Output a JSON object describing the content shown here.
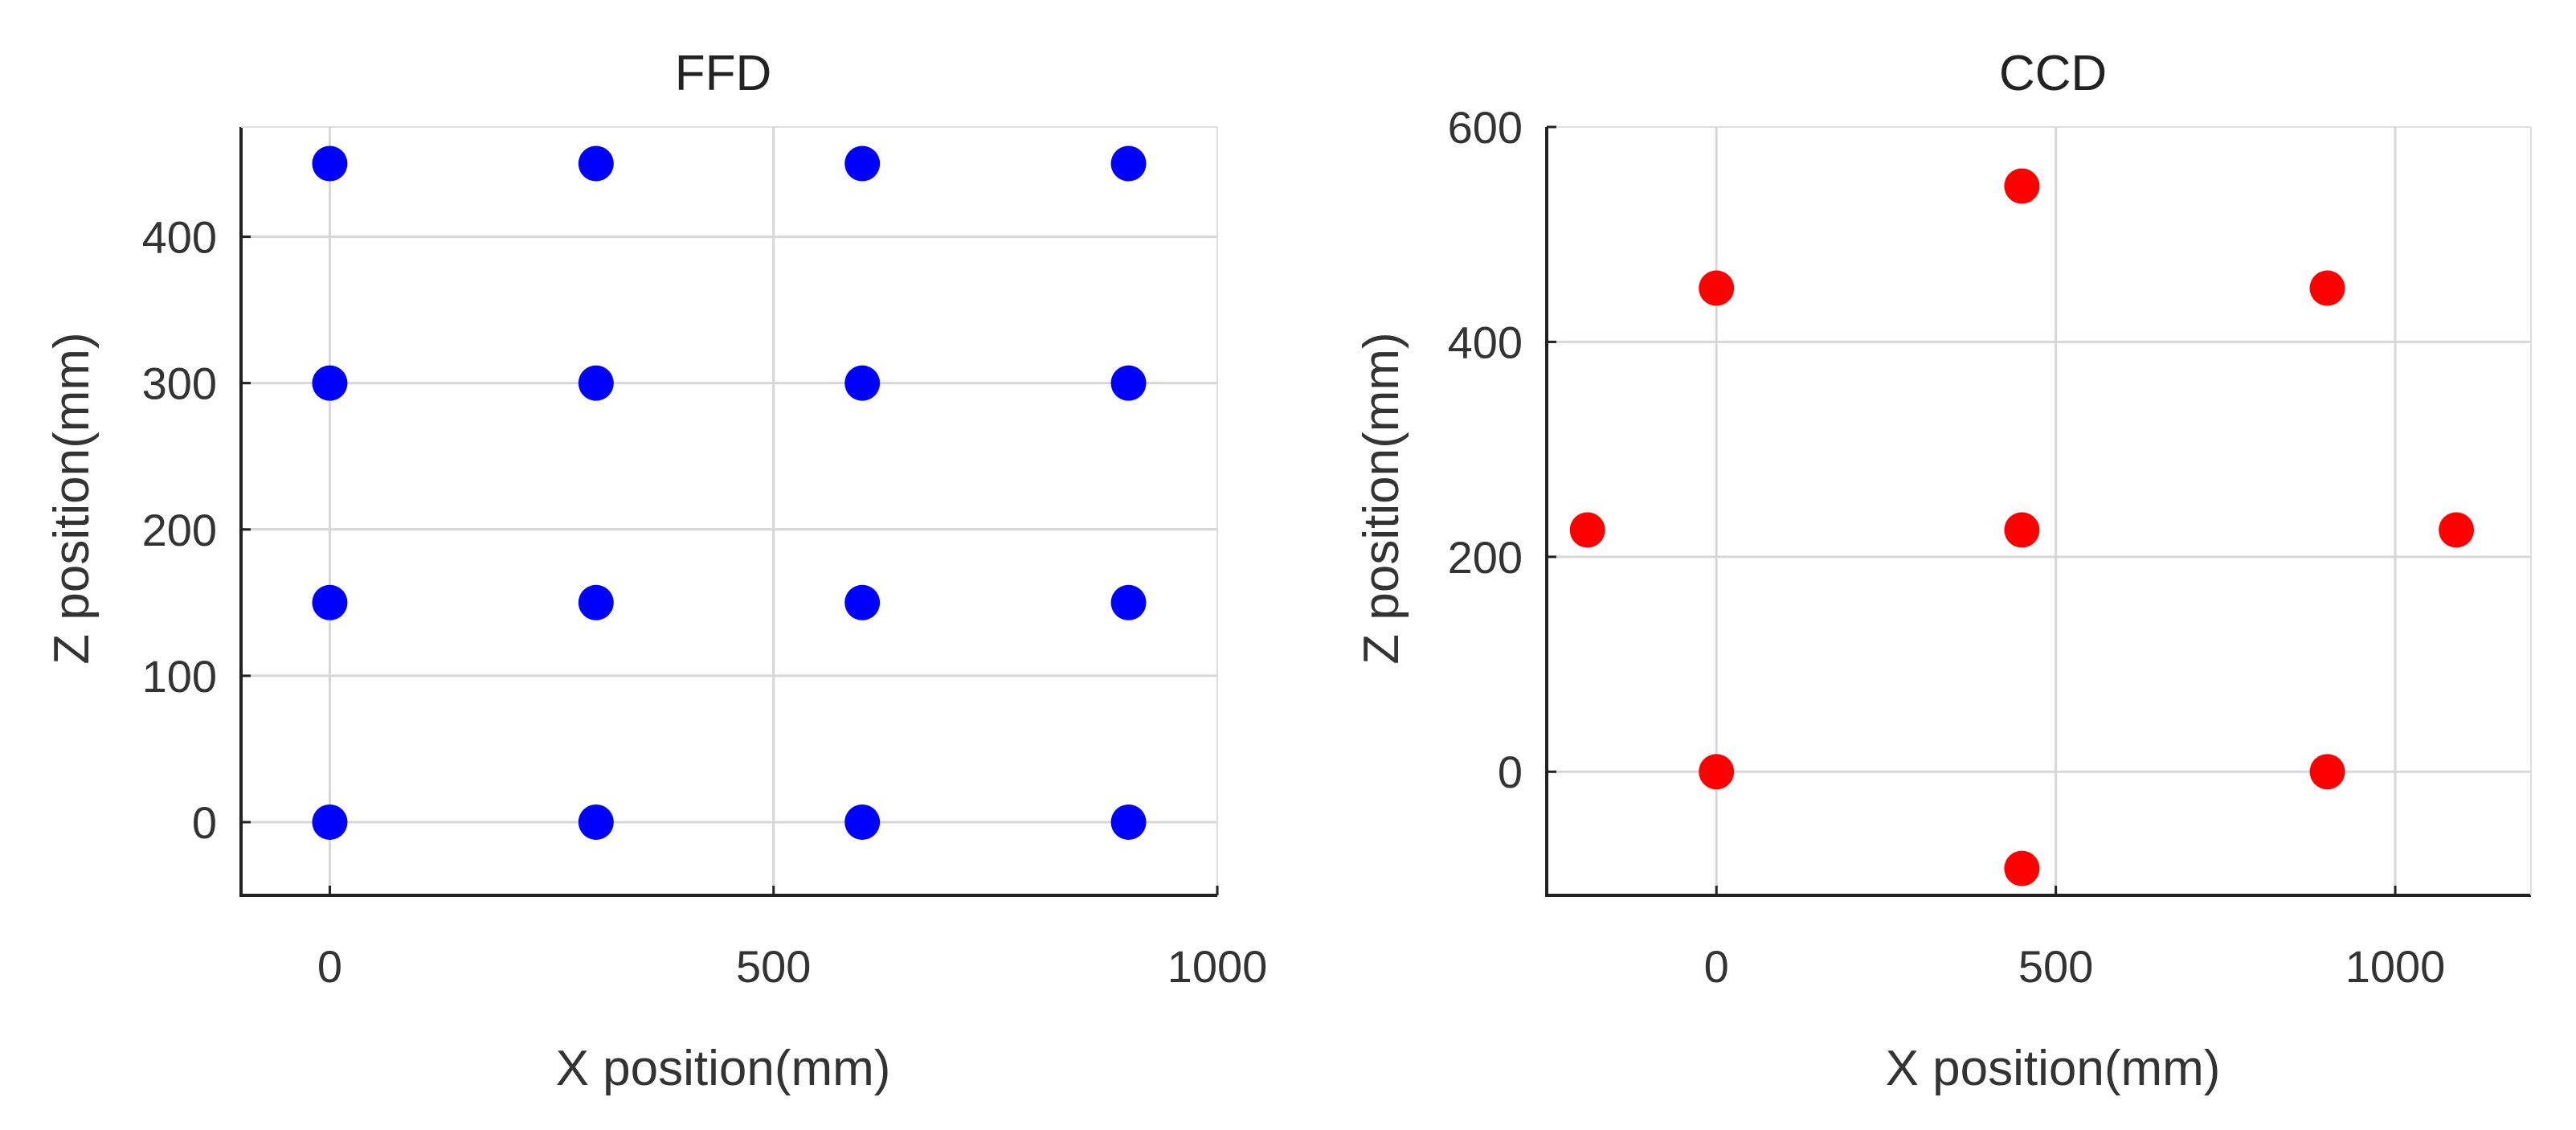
{
  "chart_data": [
    {
      "type": "scatter",
      "title": "FFD",
      "xlabel": "X position(mm)",
      "ylabel": "Z position(mm)",
      "xlim": [
        -100,
        1000
      ],
      "ylim": [
        -50,
        475
      ],
      "xticks": [
        0,
        500,
        1000
      ],
      "yticks": [
        0,
        100,
        200,
        300,
        400
      ],
      "grid": true,
      "color": "#0000ff",
      "series": [
        {
          "points": [
            {
              "x": 0,
              "y": 0
            },
            {
              "x": 300,
              "y": 0
            },
            {
              "x": 600,
              "y": 0
            },
            {
              "x": 900,
              "y": 0
            },
            {
              "x": 0,
              "y": 150
            },
            {
              "x": 300,
              "y": 150
            },
            {
              "x": 600,
              "y": 150
            },
            {
              "x": 900,
              "y": 150
            },
            {
              "x": 0,
              "y": 300
            },
            {
              "x": 300,
              "y": 300
            },
            {
              "x": 600,
              "y": 300
            },
            {
              "x": 900,
              "y": 300
            },
            {
              "x": 0,
              "y": 450
            },
            {
              "x": 300,
              "y": 450
            },
            {
              "x": 600,
              "y": 450
            },
            {
              "x": 900,
              "y": 450
            }
          ]
        }
      ]
    },
    {
      "type": "scatter",
      "title": "CCD",
      "xlabel": "X position(mm)",
      "ylabel": "Z position(mm)",
      "xlim": [
        -250,
        1200
      ],
      "ylim": [
        -115,
        600
      ],
      "xticks": [
        0,
        500,
        1000
      ],
      "yticks": [
        0,
        200,
        400,
        600
      ],
      "grid": true,
      "color": "#ff0000",
      "series": [
        {
          "points": [
            {
              "x": 450,
              "y": 545
            },
            {
              "x": 0,
              "y": 450
            },
            {
              "x": 900,
              "y": 450
            },
            {
              "x": -190,
              "y": 225
            },
            {
              "x": 450,
              "y": 225
            },
            {
              "x": 1090,
              "y": 225
            },
            {
              "x": 0,
              "y": 0
            },
            {
              "x": 900,
              "y": 0
            },
            {
              "x": 450,
              "y": -90
            }
          ]
        }
      ]
    }
  ]
}
